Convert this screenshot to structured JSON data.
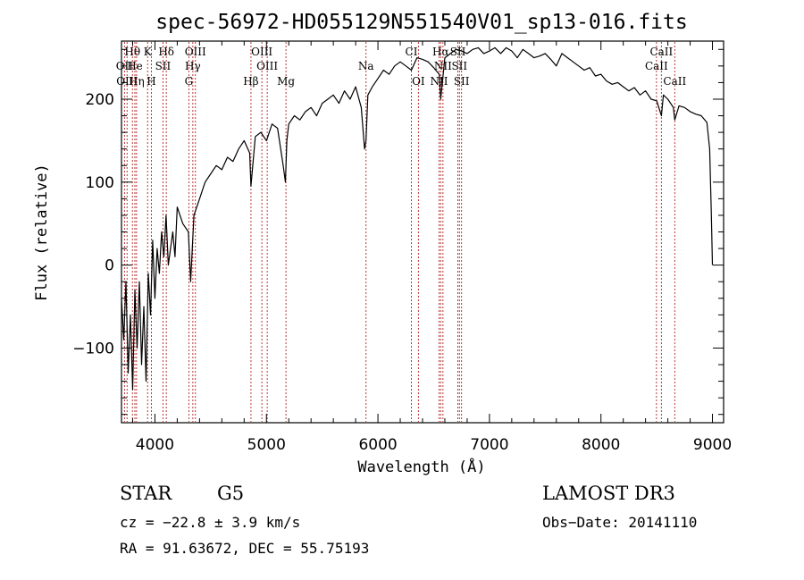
{
  "chart_data": {
    "type": "line",
    "title": "spec-56972-HD055129N551540V01_sp13-016.fits",
    "xlabel": "Wavelength (Å)",
    "ylabel": "Flux (relative)",
    "xlim": [
      3700,
      9100
    ],
    "ylim": [
      -190,
      270
    ],
    "xticks": [
      4000,
      5000,
      6000,
      7000,
      8000,
      9000
    ],
    "xtick_labels": [
      "4000",
      "5000",
      "6000",
      "7000",
      "8000",
      "9000"
    ],
    "yticks": [
      -100,
      0,
      100,
      200
    ],
    "ytick_labels": [
      "−100",
      "0",
      "100",
      "200"
    ],
    "grid": false,
    "series": [
      {
        "name": "spectrum",
        "color": "#000000",
        "x": [
          3700,
          3720,
          3740,
          3760,
          3780,
          3800,
          3820,
          3840,
          3860,
          3880,
          3900,
          3920,
          3940,
          3960,
          3980,
          4000,
          4020,
          4040,
          4060,
          4080,
          4100,
          4120,
          4140,
          4160,
          4180,
          4200,
          4250,
          4300,
          4320,
          4350,
          4400,
          4450,
          4500,
          4550,
          4600,
          4650,
          4700,
          4750,
          4800,
          4850,
          4861,
          4900,
          4950,
          5000,
          5050,
          5100,
          5150,
          5170,
          5183,
          5200,
          5250,
          5300,
          5350,
          5400,
          5450,
          5500,
          5550,
          5600,
          5650,
          5700,
          5750,
          5800,
          5850,
          5880,
          5893,
          5910,
          5950,
          6000,
          6050,
          6100,
          6150,
          6200,
          6250,
          6300,
          6350,
          6400,
          6450,
          6500,
          6550,
          6563,
          6600,
          6650,
          6700,
          6750,
          6800,
          6850,
          6900,
          6950,
          7000,
          7050,
          7100,
          7150,
          7200,
          7250,
          7300,
          7350,
          7400,
          7450,
          7500,
          7550,
          7600,
          7650,
          7700,
          7750,
          7800,
          7850,
          7900,
          7950,
          8000,
          8050,
          8100,
          8150,
          8200,
          8250,
          8300,
          8350,
          8400,
          8450,
          8500,
          8542,
          8560,
          8600,
          8650,
          8662,
          8700,
          8750,
          8800,
          8850,
          8900,
          8950,
          8975,
          8990,
          9000
        ],
        "y": [
          -40,
          -90,
          -20,
          -130,
          -60,
          -150,
          -30,
          -100,
          -20,
          -120,
          -50,
          -140,
          -10,
          -60,
          30,
          -40,
          20,
          -10,
          40,
          10,
          60,
          0,
          20,
          40,
          10,
          70,
          50,
          40,
          -20,
          60,
          80,
          100,
          110,
          120,
          115,
          130,
          125,
          140,
          150,
          135,
          95,
          155,
          160,
          150,
          170,
          165,
          120,
          100,
          150,
          170,
          180,
          175,
          185,
          190,
          180,
          195,
          200,
          205,
          195,
          210,
          200,
          215,
          190,
          140,
          150,
          205,
          215,
          225,
          235,
          230,
          240,
          245,
          240,
          235,
          250,
          248,
          245,
          238,
          230,
          200,
          250,
          255,
          260,
          258,
          255,
          260,
          262,
          255,
          258,
          262,
          255,
          262,
          258,
          250,
          260,
          255,
          250,
          252,
          255,
          248,
          240,
          255,
          250,
          245,
          240,
          235,
          238,
          228,
          230,
          222,
          218,
          220,
          215,
          210,
          214,
          205,
          210,
          200,
          198,
          180,
          205,
          200,
          190,
          175,
          192,
          190,
          185,
          182,
          180,
          172,
          140,
          60,
          0
        ]
      }
    ],
    "line_ids": [
      {
        "label": "Hθ",
        "x": 3798,
        "row": 1
      },
      {
        "label": "K",
        "x": 3934,
        "row": 1
      },
      {
        "label": "Hδ",
        "x": 4102,
        "row": 1
      },
      {
        "label": "OIII",
        "x": 4363,
        "row": 1
      },
      {
        "label": "OIII",
        "x": 4959,
        "row": 1
      },
      {
        "label": "CI",
        "x": 6300,
        "row": 1
      },
      {
        "label": "Hα",
        "x": 6563,
        "row": 1
      },
      {
        "label": "SII",
        "x": 6717,
        "row": 1
      },
      {
        "label": "CaII",
        "x": 8542,
        "row": 1
      },
      {
        "label": "OII",
        "x": 3727,
        "row": 2
      },
      {
        "label": "He",
        "x": 3820,
        "row": 2
      },
      {
        "label": "SII",
        "x": 4072,
        "row": 2
      },
      {
        "label": "Hγ",
        "x": 4340,
        "row": 2
      },
      {
        "label": "OIII",
        "x": 5007,
        "row": 2
      },
      {
        "label": "Na",
        "x": 5893,
        "row": 2
      },
      {
        "label": "NII",
        "x": 6583,
        "row": 2
      },
      {
        "label": "SII",
        "x": 6731,
        "row": 2
      },
      {
        "label": "CaII",
        "x": 8498,
        "row": 2
      },
      {
        "label": "OIII",
        "x": 3750,
        "row": 3
      },
      {
        "label": "Hη",
        "x": 3835,
        "row": 3
      },
      {
        "label": "H",
        "x": 3968,
        "row": 3
      },
      {
        "label": "G",
        "x": 4304,
        "row": 3
      },
      {
        "label": "Hβ",
        "x": 4861,
        "row": 3
      },
      {
        "label": "Mg",
        "x": 5175,
        "row": 3
      },
      {
        "label": "OI",
        "x": 6363,
        "row": 3
      },
      {
        "label": "NII",
        "x": 6548,
        "row": 3
      },
      {
        "label": "SII",
        "x": 6750,
        "row": 3
      },
      {
        "label": "CaII",
        "x": 8662,
        "row": 3
      }
    ]
  },
  "info": {
    "class_label": "STAR",
    "subclass": "G5",
    "survey": "LAMOST DR3",
    "cz": "cz = −22.8 ± 3.9 km/s",
    "obs_date": "Obs−Date: 20141110",
    "coords": "RA =  91.63672, DEC =  55.75193"
  }
}
